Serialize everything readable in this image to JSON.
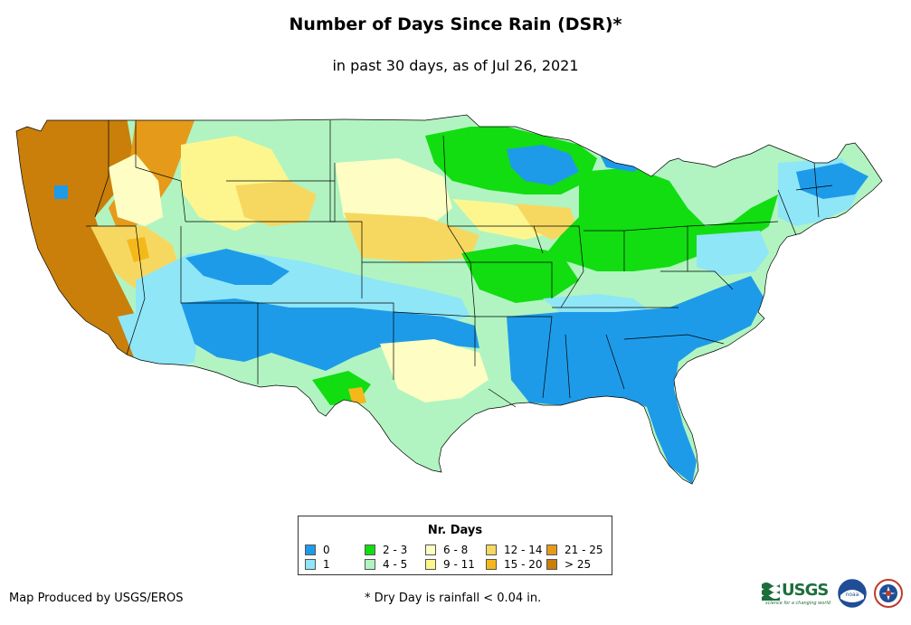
{
  "title": "Number of Days Since Rain (DSR)*",
  "subtitle": "in past 30 days, as of Jul 26, 2021",
  "legend": {
    "title": "Nr. Days",
    "items": [
      {
        "label": "0",
        "color": "#1e9be8"
      },
      {
        "label": "1",
        "color": "#8fe6f7"
      },
      {
        "label": "2 - 3",
        "color": "#11dd11"
      },
      {
        "label": "4 - 5",
        "color": "#b1f4c1"
      },
      {
        "label": "6 - 8",
        "color": "#fefec4"
      },
      {
        "label": "9 - 11",
        "color": "#fdf68f"
      },
      {
        "label": "12 - 14",
        "color": "#f6d861"
      },
      {
        "label": "15 - 20",
        "color": "#f5b81b"
      },
      {
        "label": "21 - 25",
        "color": "#e59a1a"
      },
      {
        "label": "> 25",
        "color": "#c97f09"
      }
    ]
  },
  "footer": {
    "producer": "Map Produced by USGS/EROS",
    "footnote": "* Dry Day is rainfall < 0.04 in."
  },
  "logos": {
    "usgs": "USGS",
    "usgs_tagline": "science for a changing world",
    "noaa": "noaa",
    "nws": "NWS"
  },
  "colors": {
    "c0": "#1e9be8",
    "c1": "#8fe6f7",
    "c23": "#11dd11",
    "c45": "#b1f4c1",
    "c68": "#fefec4",
    "c911": "#fdf68f",
    "c1214": "#f6d861",
    "c1520": "#f5b81b",
    "c2125": "#e59a1a",
    "c25": "#c97f09",
    "border": "#000000"
  }
}
